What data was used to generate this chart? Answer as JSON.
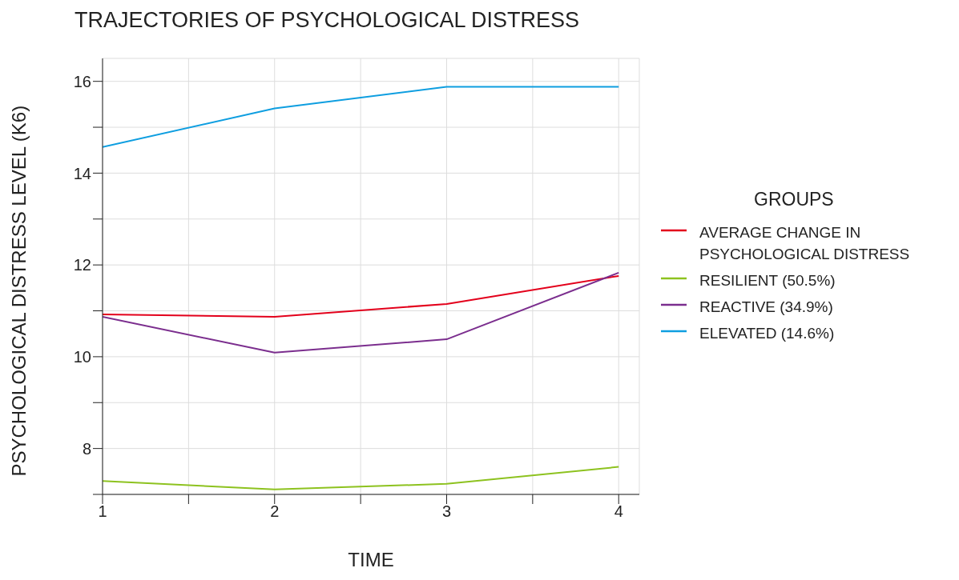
{
  "chart_data": {
    "type": "line",
    "title": "TRAJECTORIES OF PSYCHOLOGICAL DISTRESS",
    "xlabel": "TIME",
    "ylabel": "PSYCHOLOGICAL DISTRESS LEVEL (K6)",
    "legend_title": "GROUPS",
    "x": [
      1,
      2,
      3,
      4
    ],
    "series": [
      {
        "name": "AVERAGE CHANGE IN PSYCHOLOGICAL DISTRESS",
        "color": "#e3001b",
        "values": [
          10.92,
          10.87,
          11.15,
          11.76
        ]
      },
      {
        "name": "RESILIENT (50.5%)",
        "color": "#8dc21f",
        "values": [
          7.29,
          7.11,
          7.23,
          7.6
        ]
      },
      {
        "name": "REACTIVE (34.9%)",
        "color": "#7b2e8e",
        "values": [
          10.87,
          10.09,
          10.38,
          11.83
        ]
      },
      {
        "name": "ELEVATED (14.6%)",
        "color": "#0e9ee0",
        "values": [
          14.57,
          15.41,
          15.88,
          15.88
        ]
      }
    ],
    "xlim": [
      1,
      4.12
    ],
    "xticks": [
      1,
      {
        "value": 1.5,
        "label": null
      },
      2,
      {
        "value": 2.5,
        "label": null
      },
      3,
      {
        "value": 3.5,
        "label": null
      },
      4
    ],
    "ylim": [
      7,
      16.5
    ],
    "yticks": [
      {
        "value": 7,
        "label": null
      },
      8,
      {
        "value": 9,
        "label": null
      },
      10,
      {
        "value": 11,
        "label": null
      },
      12,
      {
        "value": 13,
        "label": null
      },
      14,
      {
        "value": 15,
        "label": null
      },
      16
    ],
    "grid": true,
    "legend": "right",
    "marker": "none",
    "line_style": "solid"
  }
}
